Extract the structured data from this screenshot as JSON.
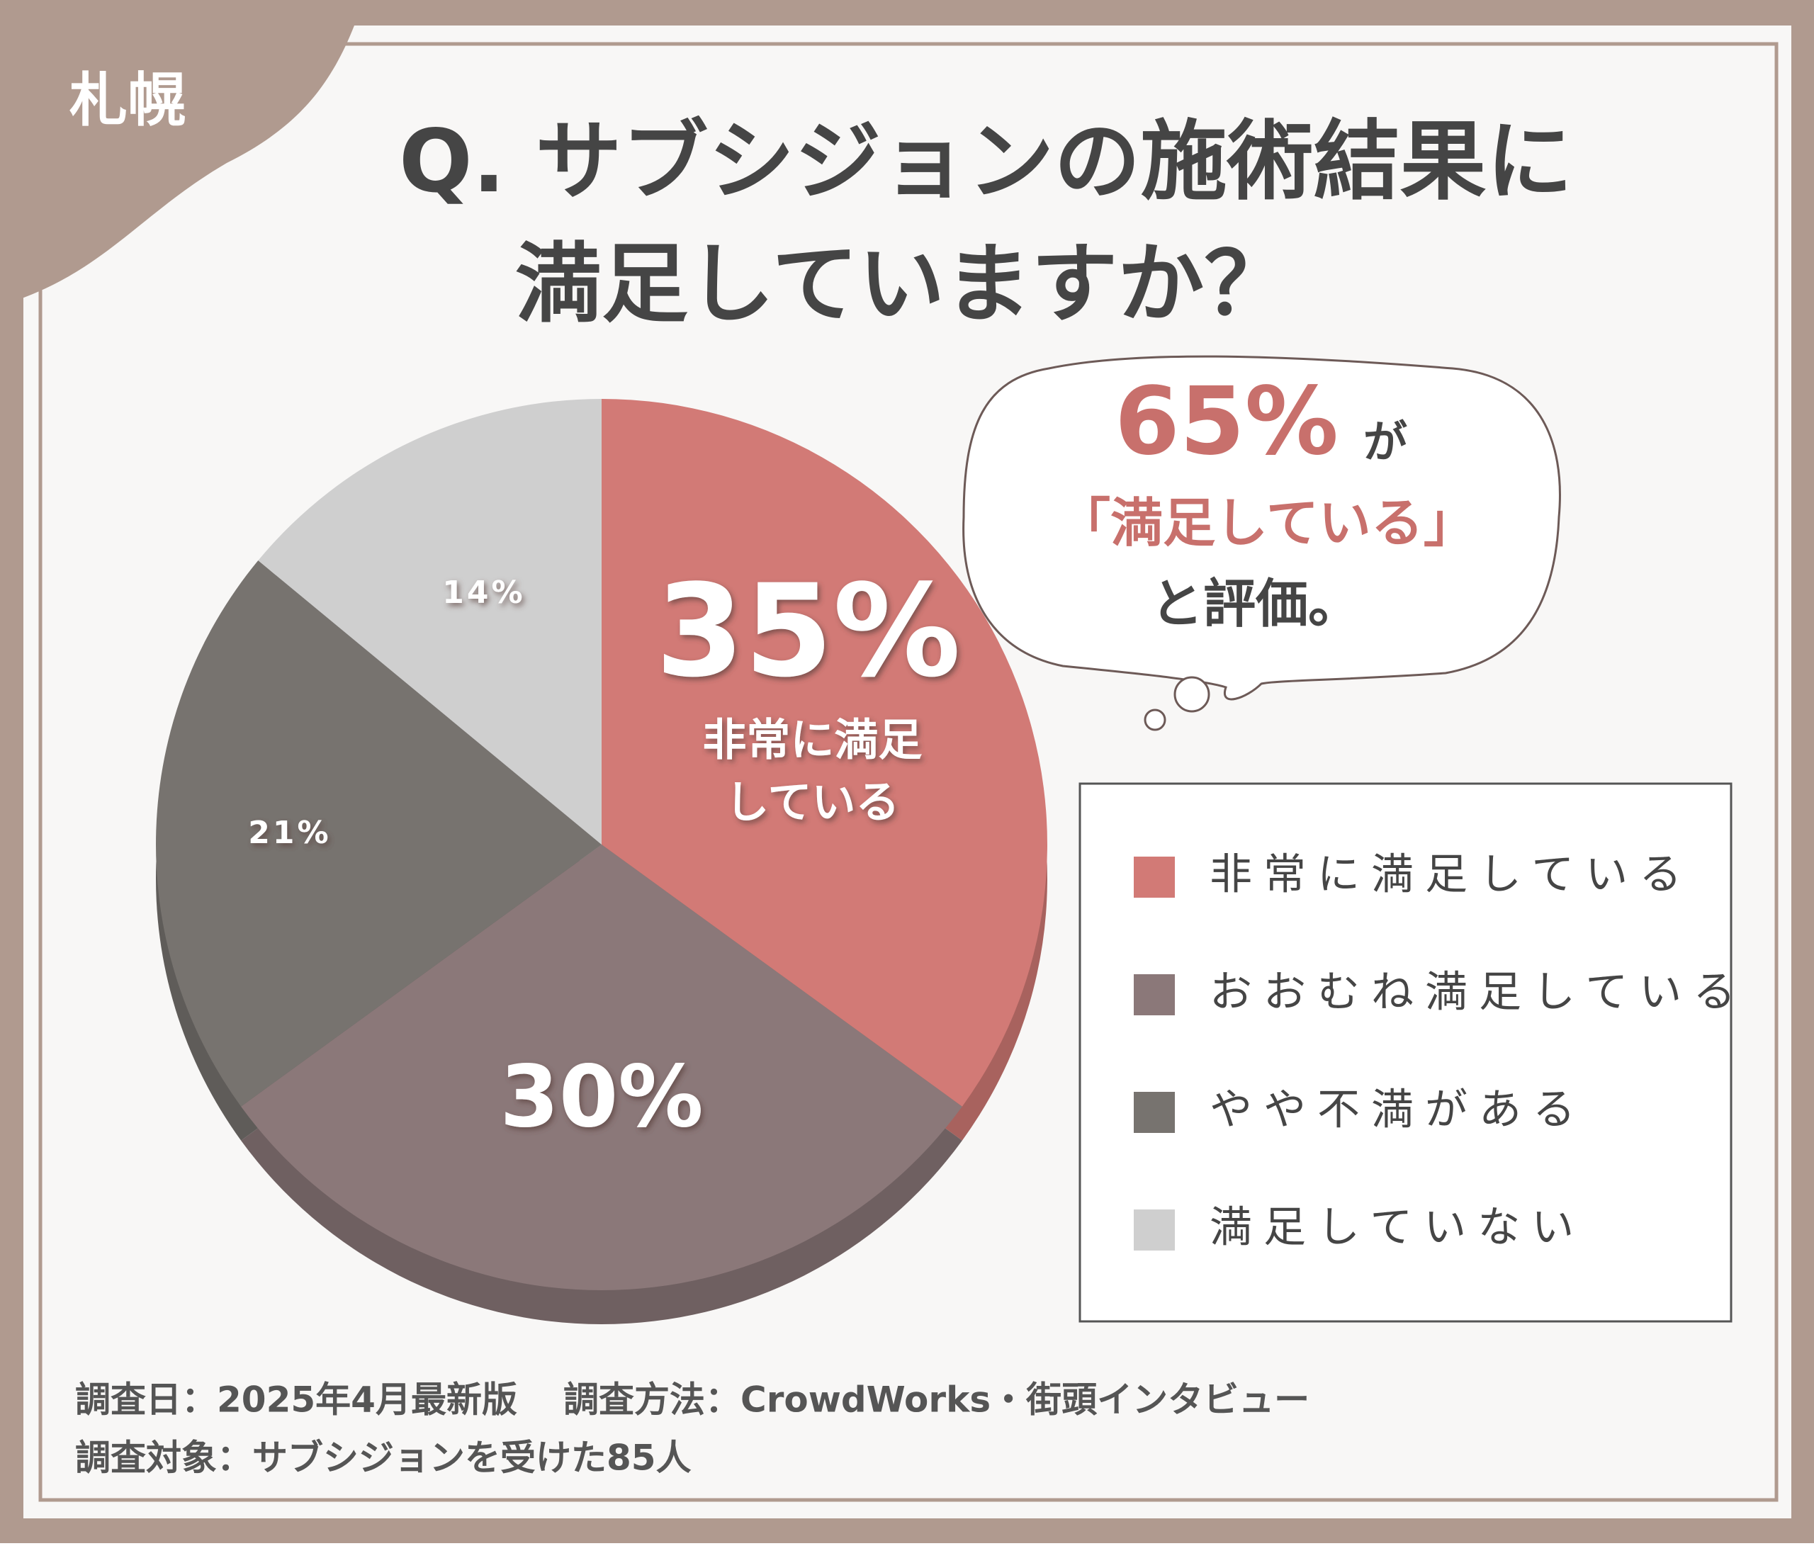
{
  "badge": "札幌",
  "chart_data": {
    "type": "pie",
    "title_lines": [
      "Q. サブシジョンの施術結果に",
      "満足していますか？"
    ],
    "categories": [
      "非常に満足している",
      "おおむね満足している",
      "やや不満がある",
      "満足していない"
    ],
    "values": [
      35,
      30,
      21,
      14
    ],
    "value_labels": [
      "35%",
      "30%",
      "21%",
      "14%"
    ],
    "colors": [
      "#d27a76",
      "#8b7879",
      "#77736f",
      "#cfcfcf"
    ],
    "slice_annotation": [
      "非常に満足",
      "している"
    ],
    "legend": "right",
    "callout": {
      "figure": "65%",
      "particle": "が",
      "quote": "「満足している」",
      "tail": "と評価。"
    },
    "notes": [
      "調査日：2025年4月最新版",
      "調査方法：CrowdWorks・街頭インタビュー",
      "調査対象：サブシジョンを受けた85人"
    ]
  }
}
